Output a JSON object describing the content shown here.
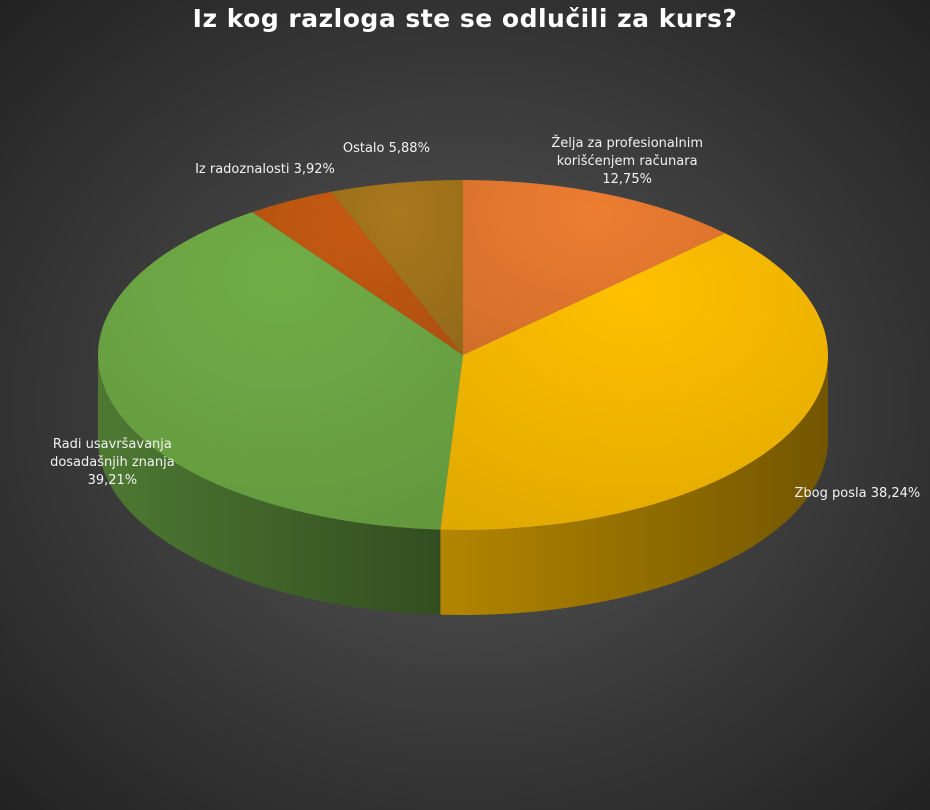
{
  "chart_data": {
    "type": "pie3d",
    "title": "Iz kog razloga ste se odlučili za kurs?",
    "categories": [
      "Želja za profesionalnim korišćenjem računara",
      "Zbog posla",
      "Radi usavršavanja dosadašnjih znanja",
      "Iz radoznalosti",
      "Ostalo"
    ],
    "values": [
      12.75,
      38.24,
      39.21,
      3.92,
      5.88
    ],
    "value_labels": [
      "12,75%",
      "38,24%",
      "39,21%",
      "3,92%",
      "5,88%"
    ],
    "colors": [
      "#ed7d31",
      "#ffc000",
      "#70ad47",
      "#c55a11",
      "#a8781c"
    ]
  }
}
